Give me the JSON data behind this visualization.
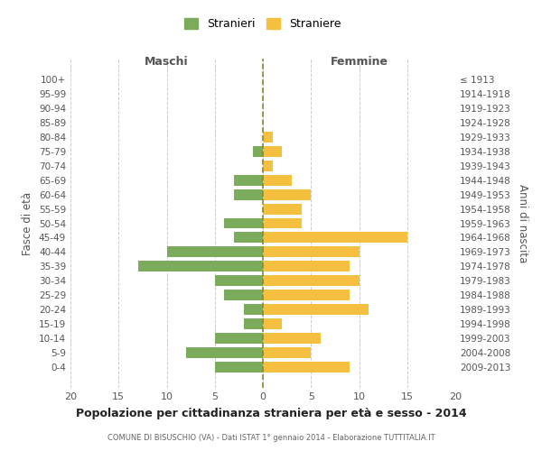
{
  "age_groups": [
    "100+",
    "95-99",
    "90-94",
    "85-89",
    "80-84",
    "75-79",
    "70-74",
    "65-69",
    "60-64",
    "55-59",
    "50-54",
    "45-49",
    "40-44",
    "35-39",
    "30-34",
    "25-29",
    "20-24",
    "15-19",
    "10-14",
    "5-9",
    "0-4"
  ],
  "birth_years": [
    "≤ 1913",
    "1914-1918",
    "1919-1923",
    "1924-1928",
    "1929-1933",
    "1934-1938",
    "1939-1943",
    "1944-1948",
    "1949-1953",
    "1954-1958",
    "1959-1963",
    "1964-1968",
    "1969-1973",
    "1974-1978",
    "1979-1983",
    "1984-1988",
    "1989-1993",
    "1994-1998",
    "1999-2003",
    "2004-2008",
    "2009-2013"
  ],
  "maschi": [
    0,
    0,
    0,
    0,
    0,
    1,
    0,
    3,
    3,
    0,
    4,
    3,
    10,
    13,
    5,
    4,
    2,
    2,
    5,
    8,
    5
  ],
  "femmine": [
    0,
    0,
    0,
    0,
    1,
    2,
    1,
    3,
    5,
    4,
    4,
    15,
    10,
    9,
    10,
    9,
    11,
    2,
    6,
    5,
    9
  ],
  "color_maschi": "#7aac5b",
  "color_femmine": "#f5c040",
  "title": "Popolazione per cittadinanza straniera per età e sesso - 2014",
  "subtitle": "COMUNE DI BISUSCHIO (VA) - Dati ISTAT 1° gennaio 2014 - Elaborazione TUTTITALIA.IT",
  "xlabel_left": "Maschi",
  "xlabel_right": "Femmine",
  "ylabel_left": "Fasce di età",
  "ylabel_right": "Anni di nascita",
  "legend_maschi": "Stranieri",
  "legend_femmine": "Straniere",
  "xlim": 20,
  "background_color": "#ffffff",
  "grid_color": "#cccccc"
}
